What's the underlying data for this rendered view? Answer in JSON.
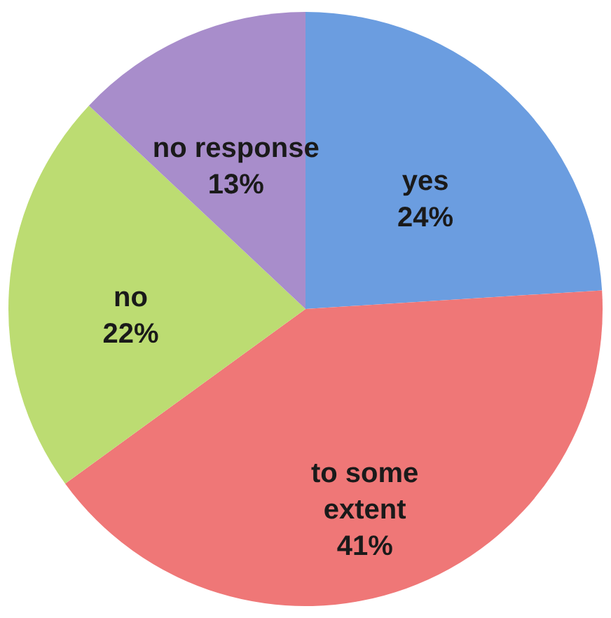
{
  "chart_data": {
    "type": "pie",
    "categories": [
      "yes",
      "to some extent",
      "no",
      "no response"
    ],
    "values": [
      24,
      41,
      22,
      13
    ],
    "value_labels": [
      "24%",
      "41%",
      "22%",
      "13%"
    ],
    "colors": [
      "#6b9de0",
      "#ef7777",
      "#bcdc72",
      "#a88dcb"
    ]
  }
}
